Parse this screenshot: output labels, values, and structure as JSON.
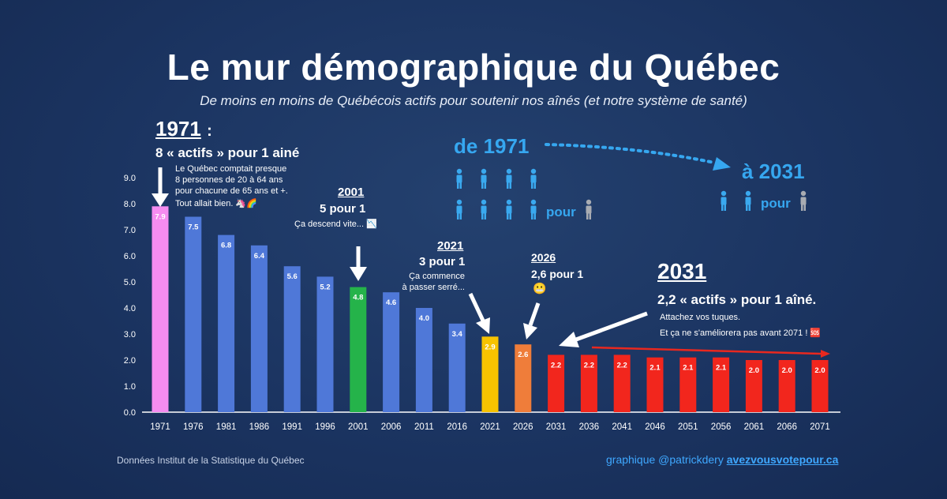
{
  "header": {
    "title": "Le mur démographique du Québec",
    "subtitle": "De moins en moins de Québécois actifs pour soutenir nos aînés (et notre système de santé)"
  },
  "annotations": {
    "y1971": "1971",
    "y1971_colon": ":",
    "a1971_ratio": "8 « actifs » pour 1 ainé",
    "a1971_note1": "Le Québec comptait presque",
    "a1971_note2": "8 personnes de 20 à 64 ans",
    "a1971_note3": "pour chacune de 65 ans et +.",
    "a1971_note4": "Tout allait bien. 🦄🌈",
    "y2001": "2001",
    "a2001_ratio": "5 pour 1",
    "a2001_note": "Ça descend vite... 📉",
    "y2021": "2021",
    "a2021_ratio": "3 pour 1",
    "a2021_note1": "Ça commence",
    "a2021_note2": "à passer serré...",
    "y2026": "2026",
    "a2026_ratio": "2,6 pour 1",
    "a2026_emoji": "😬",
    "y2031": "2031",
    "a2031_ratio": "2,2 « actifs » pour 1 aîné.",
    "a2031_note1": "Attachez vos tuques.",
    "a2031_note2": "Et ça ne s'améliorera pas avant 2071 ! 🆘"
  },
  "infographic": {
    "from_label": "de 1971",
    "to_label": "à 2031",
    "pour_label": "pour",
    "active_color": "#3aa9ef",
    "senior_color": "#a9acb2"
  },
  "footer": {
    "source": "Données Institut de la Statistique du Québec",
    "credit_prefix": "graphique @patrickdery ",
    "credit_link": "avezvousvotepour.ca"
  },
  "chart_data": {
    "type": "bar",
    "categories": [
      "1971",
      "1976",
      "1981",
      "1986",
      "1991",
      "1996",
      "2001",
      "2006",
      "2011",
      "2016",
      "2021",
      "2026",
      "2031",
      "2036",
      "2041",
      "2046",
      "2051",
      "2056",
      "2061",
      "2066",
      "2071"
    ],
    "values": [
      7.9,
      7.5,
      6.8,
      6.4,
      5.6,
      5.2,
      4.8,
      4.6,
      4.0,
      3.4,
      2.9,
      2.6,
      2.2,
      2.2,
      2.2,
      2.1,
      2.1,
      2.1,
      2.0,
      2.0,
      2.0
    ],
    "value_labels": [
      "7.9",
      "7.5",
      "6.8",
      "6.4",
      "5.6",
      "5.2",
      "4.8",
      "4.6",
      "4.0",
      "3.4",
      "2.9",
      "2.6",
      "2.2",
      "2.2",
      "2.2",
      "2.1",
      "2.1",
      "2.1",
      "2.0",
      "2.0",
      "2.0"
    ],
    "bar_colors": [
      "#f58cf0",
      "#4f78d8",
      "#4f78d8",
      "#4f78d8",
      "#4f78d8",
      "#4f78d8",
      "#25b34a",
      "#4f78d8",
      "#4f78d8",
      "#4f78d8",
      "#f7c300",
      "#ef7d3a",
      "#f2261d",
      "#f2261d",
      "#f2261d",
      "#f2261d",
      "#f2261d",
      "#f2261d",
      "#f2261d",
      "#f2261d",
      "#f2261d"
    ],
    "yticks": [
      "0.0",
      "1.0",
      "2.0",
      "3.0",
      "4.0",
      "5.0",
      "6.0",
      "7.0",
      "8.0",
      "9.0"
    ],
    "ylim": [
      0,
      9
    ],
    "grid": false
  }
}
